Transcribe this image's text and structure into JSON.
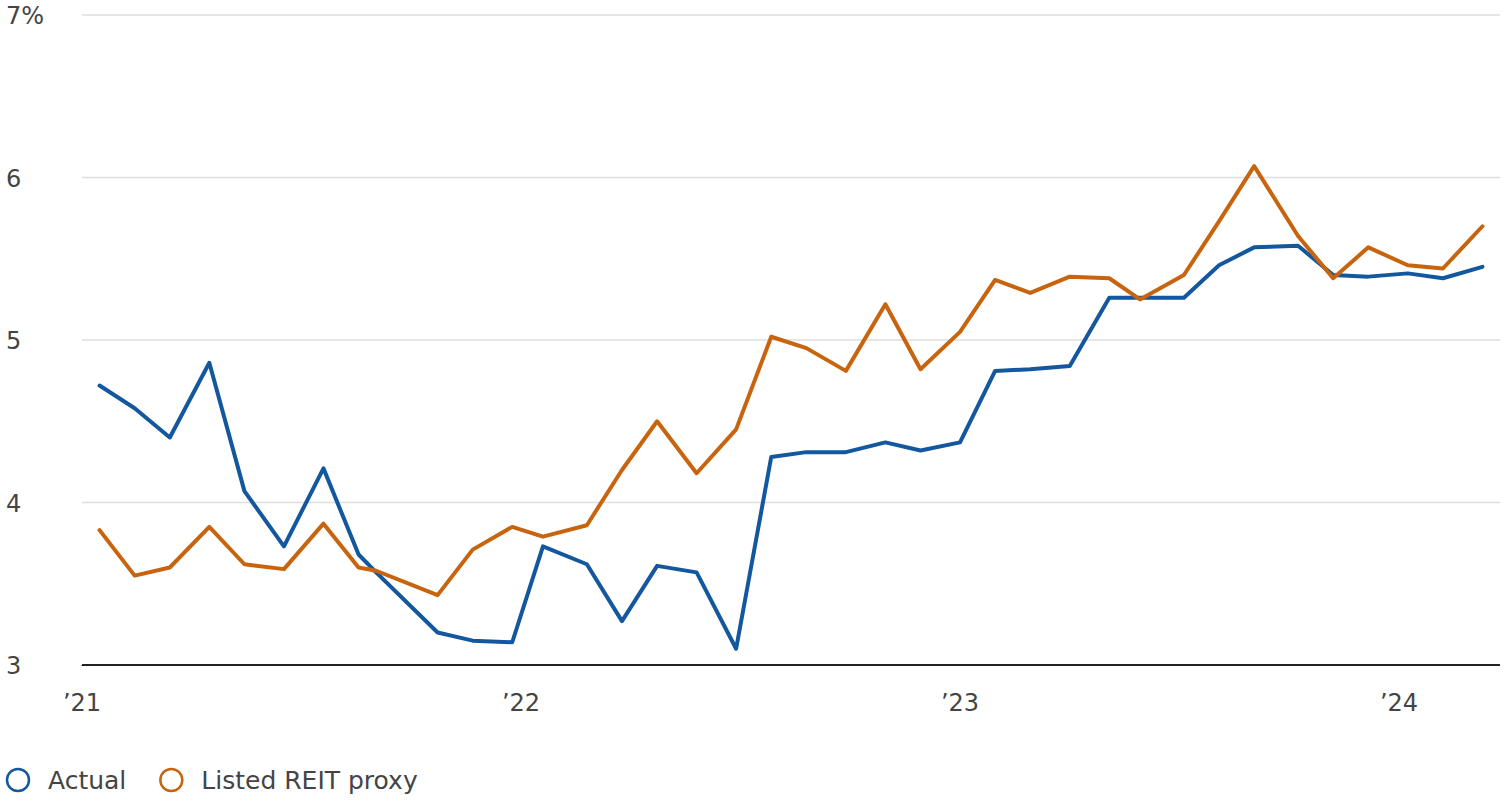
{
  "chart_data": {
    "type": "line",
    "x": [
      2021.04,
      2021.12,
      2021.2,
      2021.29,
      2021.37,
      2021.46,
      2021.55,
      2021.63,
      2021.67,
      2021.81,
      2021.89,
      2021.98,
      2022.05,
      2022.15,
      2022.23,
      2022.31,
      2022.4,
      2022.49,
      2022.57,
      2022.65,
      2022.74,
      2022.83,
      2022.91,
      2023.0,
      2023.08,
      2023.16,
      2023.25,
      2023.34,
      2023.41,
      2023.51,
      2023.59,
      2023.67,
      2023.77,
      2023.85,
      2023.93,
      2024.02,
      2024.1,
      2024.19
    ],
    "series": [
      {
        "name": "Actual",
        "color": "#13579e",
        "values": [
          4.72,
          4.58,
          4.4,
          4.86,
          4.07,
          3.73,
          4.21,
          3.68,
          3.57,
          3.2,
          3.15,
          3.14,
          3.73,
          3.62,
          3.27,
          3.61,
          3.57,
          3.1,
          4.28,
          4.31,
          4.31,
          4.37,
          4.32,
          4.37,
          4.81,
          4.82,
          4.84,
          5.26,
          5.26,
          5.26,
          5.46,
          5.57,
          5.58,
          5.4,
          5.39,
          5.41,
          5.38,
          5.45
        ]
      },
      {
        "name": "Listed REIT proxy",
        "color": "#c8630e",
        "values": [
          3.83,
          3.55,
          3.6,
          3.85,
          3.62,
          3.59,
          3.87,
          3.6,
          3.58,
          3.43,
          3.71,
          3.85,
          3.79,
          3.86,
          4.2,
          4.5,
          4.18,
          4.45,
          5.02,
          4.95,
          4.81,
          5.22,
          4.82,
          5.05,
          5.37,
          5.29,
          5.39,
          5.38,
          5.25,
          5.4,
          5.73,
          6.07,
          5.64,
          5.38,
          5.57,
          5.46,
          5.44,
          5.7
        ]
      }
    ],
    "xlim": [
      2021,
      2024.23
    ],
    "xticks": [
      {
        "value": 2021,
        "label": "’21"
      },
      {
        "value": 2022,
        "label": "’22"
      },
      {
        "value": 2023,
        "label": "’23"
      },
      {
        "value": 2024,
        "label": "’24"
      }
    ],
    "ylim": [
      3,
      7
    ],
    "yticks": [
      3,
      4,
      5,
      6,
      {
        "value": 7,
        "label": "7%"
      }
    ],
    "grid": true,
    "legend": "bottom-left"
  }
}
